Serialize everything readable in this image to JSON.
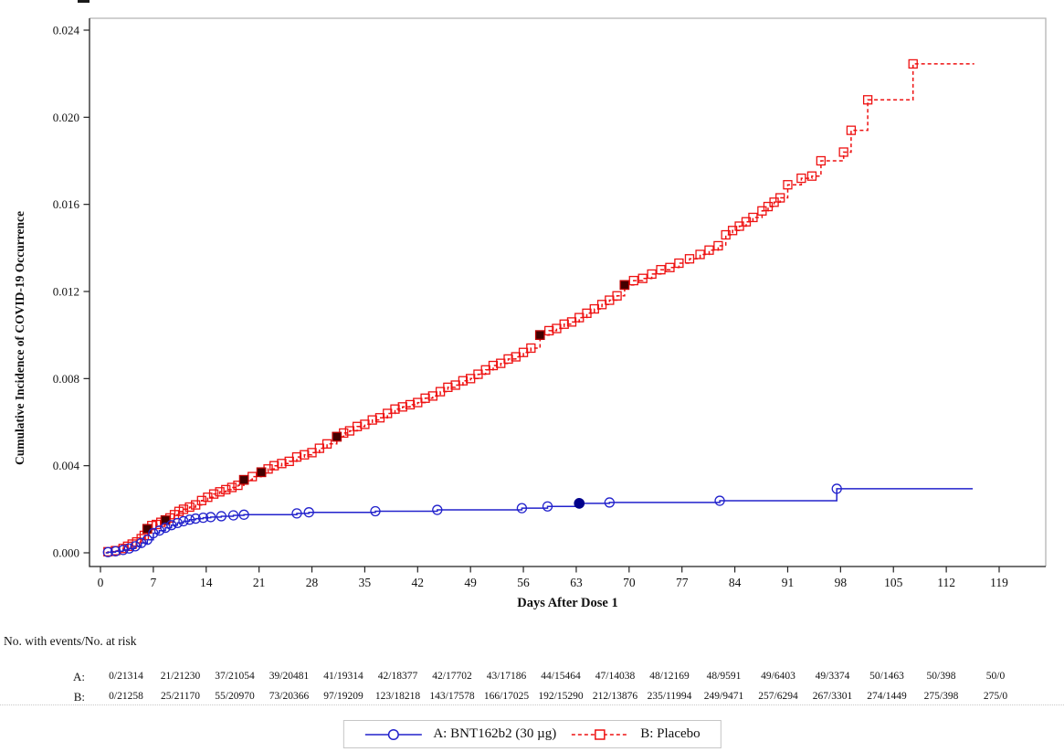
{
  "chart_data": {
    "type": "line",
    "title": "",
    "xlabel": "Days After Dose 1",
    "ylabel": "Cumulative Incidence of COVID-19 Occurrence",
    "xlim": [
      0,
      119
    ],
    "ylim": [
      0,
      0.024
    ],
    "grid": false,
    "legend_position": "bottom",
    "x_ticks": [
      0,
      7,
      14,
      21,
      28,
      35,
      42,
      49,
      56,
      63,
      70,
      77,
      84,
      91,
      98,
      105,
      112,
      119
    ],
    "x_tick_labels": [
      "0",
      "7",
      "14",
      "21",
      "28",
      "35",
      "42",
      "49",
      "56",
      "63",
      "70",
      "77",
      "84",
      "91",
      "98",
      "105",
      "112",
      "119"
    ],
    "y_ticks": [
      0.0,
      0.004,
      0.008,
      0.012,
      0.016,
      0.02,
      0.024
    ],
    "y_tick_labels": [
      "0.000",
      "0.004",
      "0.008",
      "0.012",
      "0.016",
      "0.020",
      "0.024"
    ],
    "step_interpolation": "after",
    "series": [
      {
        "name": "B: Placebo",
        "color": "#ee1111",
        "line": "dashed",
        "marker": "square",
        "severe_fill": "#420000",
        "severe_stroke": "#bb0000",
        "start_day": 0.7,
        "extend_to_day": 115.7,
        "points": [
          [
            1,
            5e-05
          ],
          [
            2,
            0.0001
          ],
          [
            3,
            0.0002
          ],
          [
            3.6,
            0.0003
          ],
          [
            4.2,
            0.0004
          ],
          [
            4.8,
            0.0005
          ],
          [
            5.4,
            0.00065
          ],
          [
            5.8,
            0.0008
          ],
          [
            6.2,
            0.0011
          ],
          [
            6.8,
            0.00125
          ],
          [
            7.4,
            0.0013
          ],
          [
            8,
            0.0014
          ],
          [
            8.6,
            0.0015
          ],
          [
            9.2,
            0.0016
          ],
          [
            9.8,
            0.00175
          ],
          [
            10.4,
            0.0019
          ],
          [
            11,
            0.002
          ],
          [
            11.8,
            0.0021
          ],
          [
            12.6,
            0.0022
          ],
          [
            13.4,
            0.0024
          ],
          [
            14.2,
            0.00255
          ],
          [
            15,
            0.0027
          ],
          [
            15.8,
            0.0028
          ],
          [
            16.6,
            0.0029
          ],
          [
            17.4,
            0.003
          ],
          [
            18.2,
            0.0031
          ],
          [
            19,
            0.00335
          ],
          [
            20.1,
            0.0035
          ],
          [
            21.3,
            0.0037
          ],
          [
            22.2,
            0.00385
          ],
          [
            23,
            0.004
          ],
          [
            24,
            0.0041
          ],
          [
            25,
            0.0042
          ],
          [
            26,
            0.0044
          ],
          [
            27,
            0.0045
          ],
          [
            28,
            0.0046
          ],
          [
            29,
            0.0048
          ],
          [
            30,
            0.005
          ],
          [
            31.3,
            0.00533
          ],
          [
            32.2,
            0.0055
          ],
          [
            33,
            0.0056
          ],
          [
            34,
            0.0058
          ],
          [
            35,
            0.0059
          ],
          [
            36,
            0.0061
          ],
          [
            37,
            0.0062
          ],
          [
            38,
            0.0064
          ],
          [
            39,
            0.0066
          ],
          [
            40,
            0.0067
          ],
          [
            41,
            0.0068
          ],
          [
            42,
            0.0069
          ],
          [
            43,
            0.0071
          ],
          [
            44,
            0.0072
          ],
          [
            45,
            0.0074
          ],
          [
            46,
            0.0076
          ],
          [
            47,
            0.0077
          ],
          [
            48,
            0.0079
          ],
          [
            49,
            0.008
          ],
          [
            50,
            0.0082
          ],
          [
            51,
            0.0084
          ],
          [
            52,
            0.0086
          ],
          [
            53,
            0.0087
          ],
          [
            54,
            0.0089
          ],
          [
            55,
            0.009
          ],
          [
            56,
            0.0092
          ],
          [
            57,
            0.0094
          ],
          [
            58.2,
            0.01
          ],
          [
            59.4,
            0.0102
          ],
          [
            60.4,
            0.0103
          ],
          [
            61.4,
            0.0105
          ],
          [
            62.4,
            0.0106
          ],
          [
            63.4,
            0.0108
          ],
          [
            64.4,
            0.011
          ],
          [
            65.4,
            0.0112
          ],
          [
            66.4,
            0.0114
          ],
          [
            67.4,
            0.0116
          ],
          [
            68.4,
            0.0118
          ],
          [
            69.4,
            0.0123
          ],
          [
            70.6,
            0.0125
          ],
          [
            71.8,
            0.0126
          ],
          [
            73,
            0.0128
          ],
          [
            74.2,
            0.013
          ],
          [
            75.4,
            0.0131
          ],
          [
            76.6,
            0.0133
          ],
          [
            78,
            0.0135
          ],
          [
            79.4,
            0.0137
          ],
          [
            80.6,
            0.0139
          ],
          [
            81.8,
            0.0141
          ],
          [
            82.8,
            0.0146
          ],
          [
            83.7,
            0.0148
          ],
          [
            84.6,
            0.015
          ],
          [
            85.5,
            0.0152
          ],
          [
            86.4,
            0.0154
          ],
          [
            87.6,
            0.0157
          ],
          [
            88.4,
            0.0159
          ],
          [
            89.2,
            0.0161
          ],
          [
            90,
            0.0163
          ],
          [
            91,
            0.0169
          ],
          [
            92.8,
            0.0172
          ],
          [
            94.2,
            0.0173
          ],
          [
            95.4,
            0.018
          ],
          [
            98.4,
            0.0184
          ],
          [
            99.4,
            0.0194
          ],
          [
            101.6,
            0.0208
          ],
          [
            107.6,
            0.02245
          ]
        ],
        "severe_points": [
          [
            6.2,
            0.0011
          ],
          [
            8.6,
            0.0015
          ],
          [
            19,
            0.00335
          ],
          [
            21.3,
            0.0037
          ],
          [
            31.3,
            0.00533
          ],
          [
            58.2,
            0.01
          ],
          [
            69.4,
            0.0123
          ]
        ]
      },
      {
        "name": "A: BNT162b2 (30 µg)",
        "color": "#2222cc",
        "line": "solid",
        "marker": "circle",
        "severe_fill": "#00008b",
        "severe_stroke": "#00008b",
        "start_day": 0.7,
        "extend_to_day": 115.5,
        "points": [
          [
            1,
            3e-05
          ],
          [
            2,
            7e-05
          ],
          [
            3,
            0.00013
          ],
          [
            3.8,
            0.0002
          ],
          [
            4.6,
            0.0003
          ],
          [
            5.4,
            0.00045
          ],
          [
            6.2,
            0.0006
          ],
          [
            7,
            0.0009
          ],
          [
            7.8,
            0.00102
          ],
          [
            8.6,
            0.00115
          ],
          [
            9.4,
            0.00127
          ],
          [
            10.2,
            0.00137
          ],
          [
            11,
            0.00145
          ],
          [
            11.8,
            0.00152
          ],
          [
            12.6,
            0.00157
          ],
          [
            13.6,
            0.00161
          ],
          [
            14.6,
            0.00164
          ],
          [
            16,
            0.00168
          ],
          [
            17.6,
            0.00172
          ],
          [
            19,
            0.00175
          ],
          [
            26,
            0.00181
          ],
          [
            27.6,
            0.00186
          ],
          [
            36.4,
            0.00191
          ],
          [
            44.6,
            0.00197
          ],
          [
            55.8,
            0.00205
          ],
          [
            59.2,
            0.00213
          ],
          [
            63.4,
            0.00227
          ],
          [
            67.4,
            0.00231
          ],
          [
            82,
            0.00239
          ],
          [
            97.5,
            0.00294
          ]
        ],
        "severe_points": [
          [
            63.4,
            0.00227
          ]
        ]
      }
    ],
    "risk_table": {
      "header": "No. with events/No. at risk",
      "rows": [
        {
          "label": "A:",
          "values": [
            "0/21314",
            "21/21230",
            "37/21054",
            "39/20481",
            "41/19314",
            "42/18377",
            "42/17702",
            "43/17186",
            "44/15464",
            "47/14038",
            "48/12169",
            "48/9591",
            "49/6403",
            "49/3374",
            "50/1463",
            "50/398",
            "50/0"
          ]
        },
        {
          "label": "B:",
          "values": [
            "0/21258",
            "25/21170",
            "55/20970",
            "73/20366",
            "97/19209",
            "123/18218",
            "143/17578",
            "166/17025",
            "192/15290",
            "212/13876",
            "235/11994",
            "249/9471",
            "257/6294",
            "267/3301",
            "274/1449",
            "275/398",
            "275/0"
          ]
        }
      ]
    },
    "legend": [
      {
        "label": "A: BNT162b2 (30 µg)",
        "color": "#2222cc",
        "marker": "circle",
        "line": "solid"
      },
      {
        "label": "B: Placebo",
        "color": "#ee1111",
        "marker": "square",
        "line": "dashed"
      }
    ],
    "colors": {
      "frame_gray": "#b3b3b3",
      "axis_black": "#222222",
      "severe_a": "#00008b",
      "severe_b": "#420000"
    }
  }
}
